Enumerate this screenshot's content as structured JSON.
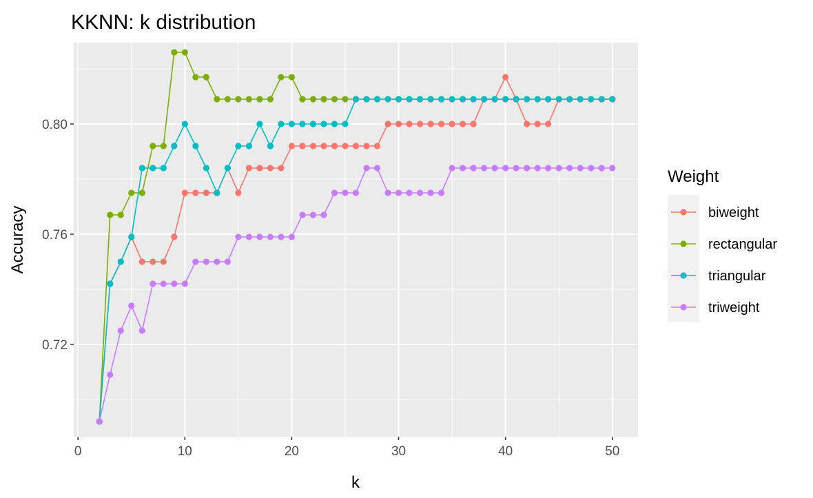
{
  "chart_data": {
    "type": "line",
    "title": "KKNN: k distribution",
    "xlabel": "k",
    "ylabel": "Accuracy",
    "xlim": [
      -0.4,
      52.4
    ],
    "ylim": [
      0.6865,
      0.8295
    ],
    "x_ticks": [
      0,
      10,
      20,
      30,
      40,
      50
    ],
    "x_tick_labels": [
      "0",
      "10",
      "20",
      "30",
      "40",
      "50"
    ],
    "y_ticks": [
      0.72,
      0.76,
      0.8
    ],
    "y_tick_labels": [
      "0.72",
      "0.76",
      "0.80"
    ],
    "x_minor_ticks": [
      5,
      15,
      25,
      35,
      45
    ],
    "y_minor_ticks": [
      0.7,
      0.74,
      0.78,
      0.82
    ],
    "grid": true,
    "legend_title": "Weight",
    "legend_position": "right",
    "x": [
      2,
      3,
      4,
      5,
      6,
      7,
      8,
      9,
      10,
      11,
      12,
      13,
      14,
      15,
      16,
      17,
      18,
      19,
      20,
      21,
      22,
      23,
      24,
      25,
      26,
      27,
      28,
      29,
      30,
      31,
      32,
      33,
      34,
      35,
      36,
      37,
      38,
      39,
      40,
      41,
      42,
      43,
      44,
      45,
      46,
      47,
      48,
      49,
      50
    ],
    "series": [
      {
        "name": "biweight",
        "color": "#F8766D",
        "values": [
          0.692,
          0.742,
          0.75,
          0.759,
          0.75,
          0.75,
          0.75,
          0.759,
          0.775,
          0.775,
          0.775,
          0.775,
          0.784,
          0.775,
          0.784,
          0.784,
          0.784,
          0.784,
          0.792,
          0.792,
          0.792,
          0.792,
          0.792,
          0.792,
          0.792,
          0.792,
          0.792,
          0.8,
          0.8,
          0.8,
          0.8,
          0.8,
          0.8,
          0.8,
          0.8,
          0.8,
          0.809,
          0.809,
          0.817,
          0.809,
          0.8,
          0.8,
          0.8,
          0.809,
          0.809,
          0.809,
          0.809,
          0.809,
          0.809
        ]
      },
      {
        "name": "rectangular",
        "color": "#7CAE00",
        "values": [
          0.692,
          0.767,
          0.767,
          0.775,
          0.775,
          0.792,
          0.792,
          0.826,
          0.826,
          0.817,
          0.817,
          0.809,
          0.809,
          0.809,
          0.809,
          0.809,
          0.809,
          0.817,
          0.817,
          0.809,
          0.809,
          0.809,
          0.809,
          0.809,
          0.809,
          0.809,
          0.809,
          0.809,
          0.809,
          0.809,
          0.809,
          0.809,
          0.809,
          0.809,
          0.809,
          0.809,
          0.809,
          0.809,
          0.809,
          0.809,
          0.809,
          0.809,
          0.809,
          0.809,
          0.809,
          0.809,
          0.809,
          0.809,
          0.809
        ]
      },
      {
        "name": "triangular",
        "color": "#00BFC4",
        "values": [
          0.692,
          0.742,
          0.75,
          0.759,
          0.784,
          0.784,
          0.784,
          0.792,
          0.8,
          0.792,
          0.784,
          0.775,
          0.784,
          0.792,
          0.792,
          0.8,
          0.792,
          0.8,
          0.8,
          0.8,
          0.8,
          0.8,
          0.8,
          0.8,
          0.809,
          0.809,
          0.809,
          0.809,
          0.809,
          0.809,
          0.809,
          0.809,
          0.809,
          0.809,
          0.809,
          0.809,
          0.809,
          0.809,
          0.809,
          0.809,
          0.809,
          0.809,
          0.809,
          0.809,
          0.809,
          0.809,
          0.809,
          0.809,
          0.809
        ]
      },
      {
        "name": "triweight",
        "color": "#C77CFF",
        "values": [
          0.692,
          0.709,
          0.725,
          0.734,
          0.725,
          0.742,
          0.742,
          0.742,
          0.742,
          0.75,
          0.75,
          0.75,
          0.75,
          0.759,
          0.759,
          0.759,
          0.759,
          0.759,
          0.759,
          0.767,
          0.767,
          0.767,
          0.775,
          0.775,
          0.775,
          0.784,
          0.784,
          0.775,
          0.775,
          0.775,
          0.775,
          0.775,
          0.775,
          0.784,
          0.784,
          0.784,
          0.784,
          0.784,
          0.784,
          0.784,
          0.784,
          0.784,
          0.784,
          0.784,
          0.784,
          0.784,
          0.784,
          0.784,
          0.784
        ]
      }
    ]
  }
}
